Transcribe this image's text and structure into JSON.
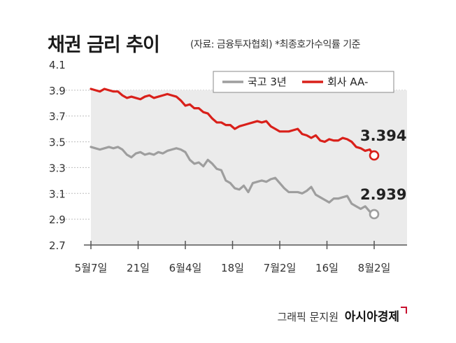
{
  "header": {
    "title": "채권 금리 추이",
    "subtitle": "(자료: 금융투자협회)  *최종호가수익률 기준"
  },
  "footer": {
    "credit": "그래픽 문지원",
    "brand": "아시아경제"
  },
  "chart_data": {
    "type": "line",
    "title": "채권 금리 추이",
    "ylim": [
      2.7,
      4.1
    ],
    "y_ticks": [
      "4.1",
      "3.9",
      "3.7",
      "3.5",
      "3.3",
      "3.1",
      "2.9",
      "2.7"
    ],
    "x_tick_labels": [
      "5월7일",
      "21일",
      "6월4일",
      "18일",
      "7월2일",
      "16일",
      "8월2일"
    ],
    "legend_position": "top-right",
    "series": [
      {
        "name": "국고 3년",
        "color": "#9e9e9e",
        "last_value_label": "2.939",
        "values": [
          3.46,
          3.45,
          3.44,
          3.45,
          3.46,
          3.45,
          3.46,
          3.44,
          3.4,
          3.38,
          3.41,
          3.42,
          3.4,
          3.41,
          3.4,
          3.42,
          3.41,
          3.43,
          3.44,
          3.45,
          3.44,
          3.42,
          3.36,
          3.33,
          3.34,
          3.31,
          3.36,
          3.33,
          3.29,
          3.28,
          3.2,
          3.18,
          3.14,
          3.13,
          3.16,
          3.11,
          3.18,
          3.19,
          3.2,
          3.19,
          3.21,
          3.22,
          3.18,
          3.14,
          3.11,
          3.11,
          3.11,
          3.1,
          3.12,
          3.15,
          3.09,
          3.07,
          3.05,
          3.03,
          3.06,
          3.06,
          3.07,
          3.08,
          3.02,
          3.0,
          2.98,
          3.0,
          2.96,
          2.939
        ]
      },
      {
        "name": "회사 AA-",
        "color": "#d9201a",
        "last_value_label": "3.394",
        "values": [
          3.91,
          3.9,
          3.89,
          3.91,
          3.9,
          3.89,
          3.89,
          3.86,
          3.84,
          3.85,
          3.84,
          3.83,
          3.85,
          3.86,
          3.84,
          3.85,
          3.86,
          3.87,
          3.86,
          3.85,
          3.82,
          3.78,
          3.79,
          3.76,
          3.76,
          3.73,
          3.72,
          3.68,
          3.65,
          3.65,
          3.63,
          3.63,
          3.6,
          3.62,
          3.63,
          3.64,
          3.65,
          3.66,
          3.65,
          3.66,
          3.62,
          3.6,
          3.58,
          3.58,
          3.58,
          3.59,
          3.6,
          3.56,
          3.55,
          3.53,
          3.55,
          3.51,
          3.5,
          3.52,
          3.51,
          3.51,
          3.53,
          3.52,
          3.5,
          3.46,
          3.45,
          3.43,
          3.44,
          3.394
        ]
      }
    ]
  }
}
